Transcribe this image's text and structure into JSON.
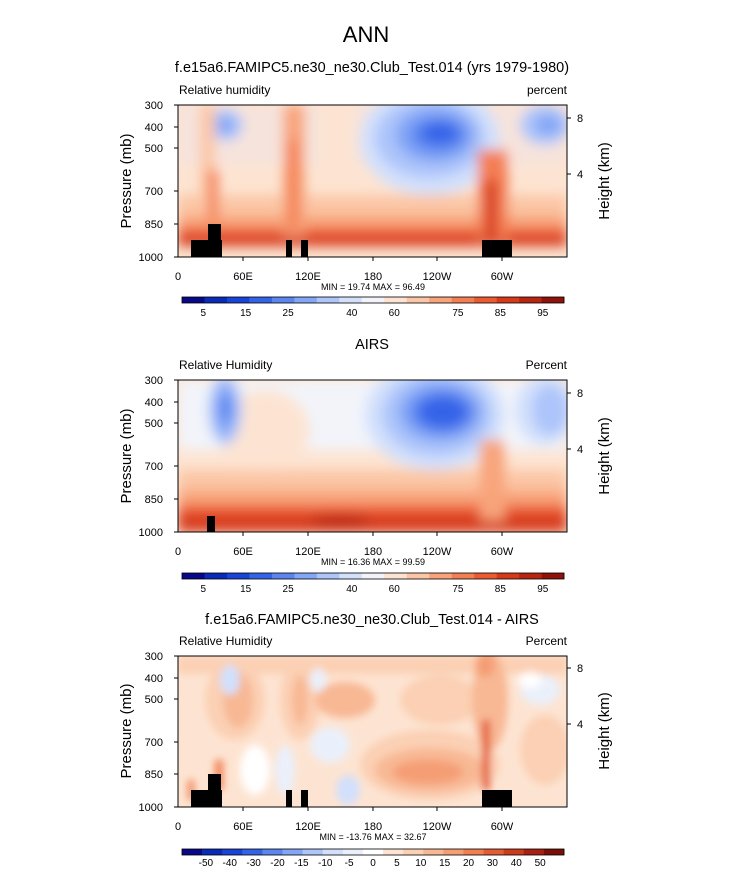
{
  "figure_title": "ANN",
  "colors": {
    "rh_scale": [
      "#08088a",
      "#0a2ab8",
      "#1a44d8",
      "#3563e8",
      "#5b86f0",
      "#84a6f6",
      "#adc5fa",
      "#d2e0fc",
      "#f2f4fa",
      "#fde4d2",
      "#fbc6a5",
      "#f8a47a",
      "#f47e53",
      "#ec5a31",
      "#d63a1a",
      "#b82612",
      "#90120a"
    ],
    "diff_scale": [
      "#08088a",
      "#0a2ab8",
      "#1a44d8",
      "#3563e8",
      "#5b86f0",
      "#84a6f6",
      "#adc5fa",
      "#d2e0fc",
      "#eaf0fb",
      "#ffffff",
      "#fde4d2",
      "#fbd0b4",
      "#f8b894",
      "#f59e74",
      "#f07f52",
      "#e45c34",
      "#cc3c1a",
      "#a8200f",
      "#7a0f08"
    ],
    "terrain": "#000000"
  },
  "chart_data": [
    {
      "type": "heatmap",
      "title": "f.e15a6.FAMIPC5.ne30_ne30.Club_Test.014 (yrs 1979-1980)",
      "left_string": "Relative humidity",
      "right_string": "percent",
      "xlabel": "",
      "ylabel": "Pressure (mb)",
      "y2label": "Height (km)",
      "x_ticks": [
        "0",
        "60E",
        "120E",
        "180",
        "120W",
        "60W"
      ],
      "x_range": [
        0,
        360
      ],
      "y_ticks": [
        "300",
        "400",
        "500",
        "700",
        "850",
        "1000"
      ],
      "y_range_mb": [
        1000,
        300
      ],
      "y2_ticks": [
        "4",
        "8"
      ],
      "stats": "MIN =  19.74  MAX =  96.49",
      "min": 19.74,
      "max": 96.49,
      "colorbar_labels": [
        "5",
        "15",
        "25",
        "40",
        "60",
        "75",
        "85",
        "95"
      ],
      "colorbar_levels": [
        5,
        10,
        15,
        20,
        25,
        30,
        35,
        40,
        50,
        60,
        65,
        70,
        75,
        80,
        85,
        90,
        95
      ]
    },
    {
      "type": "heatmap",
      "title": "AIRS",
      "left_string": "Relative Humidity",
      "right_string": "Percent",
      "xlabel": "",
      "ylabel": "Pressure (mb)",
      "y2label": "Height (km)",
      "x_ticks": [
        "0",
        "60E",
        "120E",
        "180",
        "120W",
        "60W"
      ],
      "x_range": [
        0,
        360
      ],
      "y_ticks": [
        "300",
        "400",
        "500",
        "700",
        "850",
        "1000"
      ],
      "y_range_mb": [
        1000,
        300
      ],
      "y2_ticks": [
        "4",
        "8"
      ],
      "stats": "MIN =  16.36  MAX =  99.59",
      "min": 16.36,
      "max": 99.59,
      "colorbar_labels": [
        "5",
        "15",
        "25",
        "40",
        "60",
        "75",
        "85",
        "95"
      ],
      "colorbar_levels": [
        5,
        10,
        15,
        20,
        25,
        30,
        35,
        40,
        50,
        60,
        65,
        70,
        75,
        80,
        85,
        90,
        95
      ]
    },
    {
      "type": "heatmap",
      "title": "f.e15a6.FAMIPC5.ne30_ne30.Club_Test.014 - AIRS",
      "left_string": "Relative Humidity",
      "right_string": "Percent",
      "xlabel": "",
      "ylabel": "Pressure (mb)",
      "y2label": "Height (km)",
      "x_ticks": [
        "0",
        "60E",
        "120E",
        "180",
        "120W",
        "60W"
      ],
      "x_range": [
        0,
        360
      ],
      "y_ticks": [
        "300",
        "400",
        "500",
        "700",
        "850",
        "1000"
      ],
      "y_range_mb": [
        1000,
        300
      ],
      "y2_ticks": [
        "4",
        "8"
      ],
      "stats": "MIN = -13.76  MAX =  32.67",
      "min": -13.76,
      "max": 32.67,
      "colorbar_labels": [
        "-50",
        "-40",
        "-30",
        "-20",
        "-15",
        "-10",
        "-5",
        "0",
        "5",
        "10",
        "15",
        "20",
        "30",
        "40",
        "50"
      ],
      "colorbar_levels": [
        -50,
        -40,
        -30,
        -20,
        -15,
        -10,
        -5,
        0,
        5,
        10,
        15,
        20,
        30,
        40,
        50
      ]
    }
  ]
}
